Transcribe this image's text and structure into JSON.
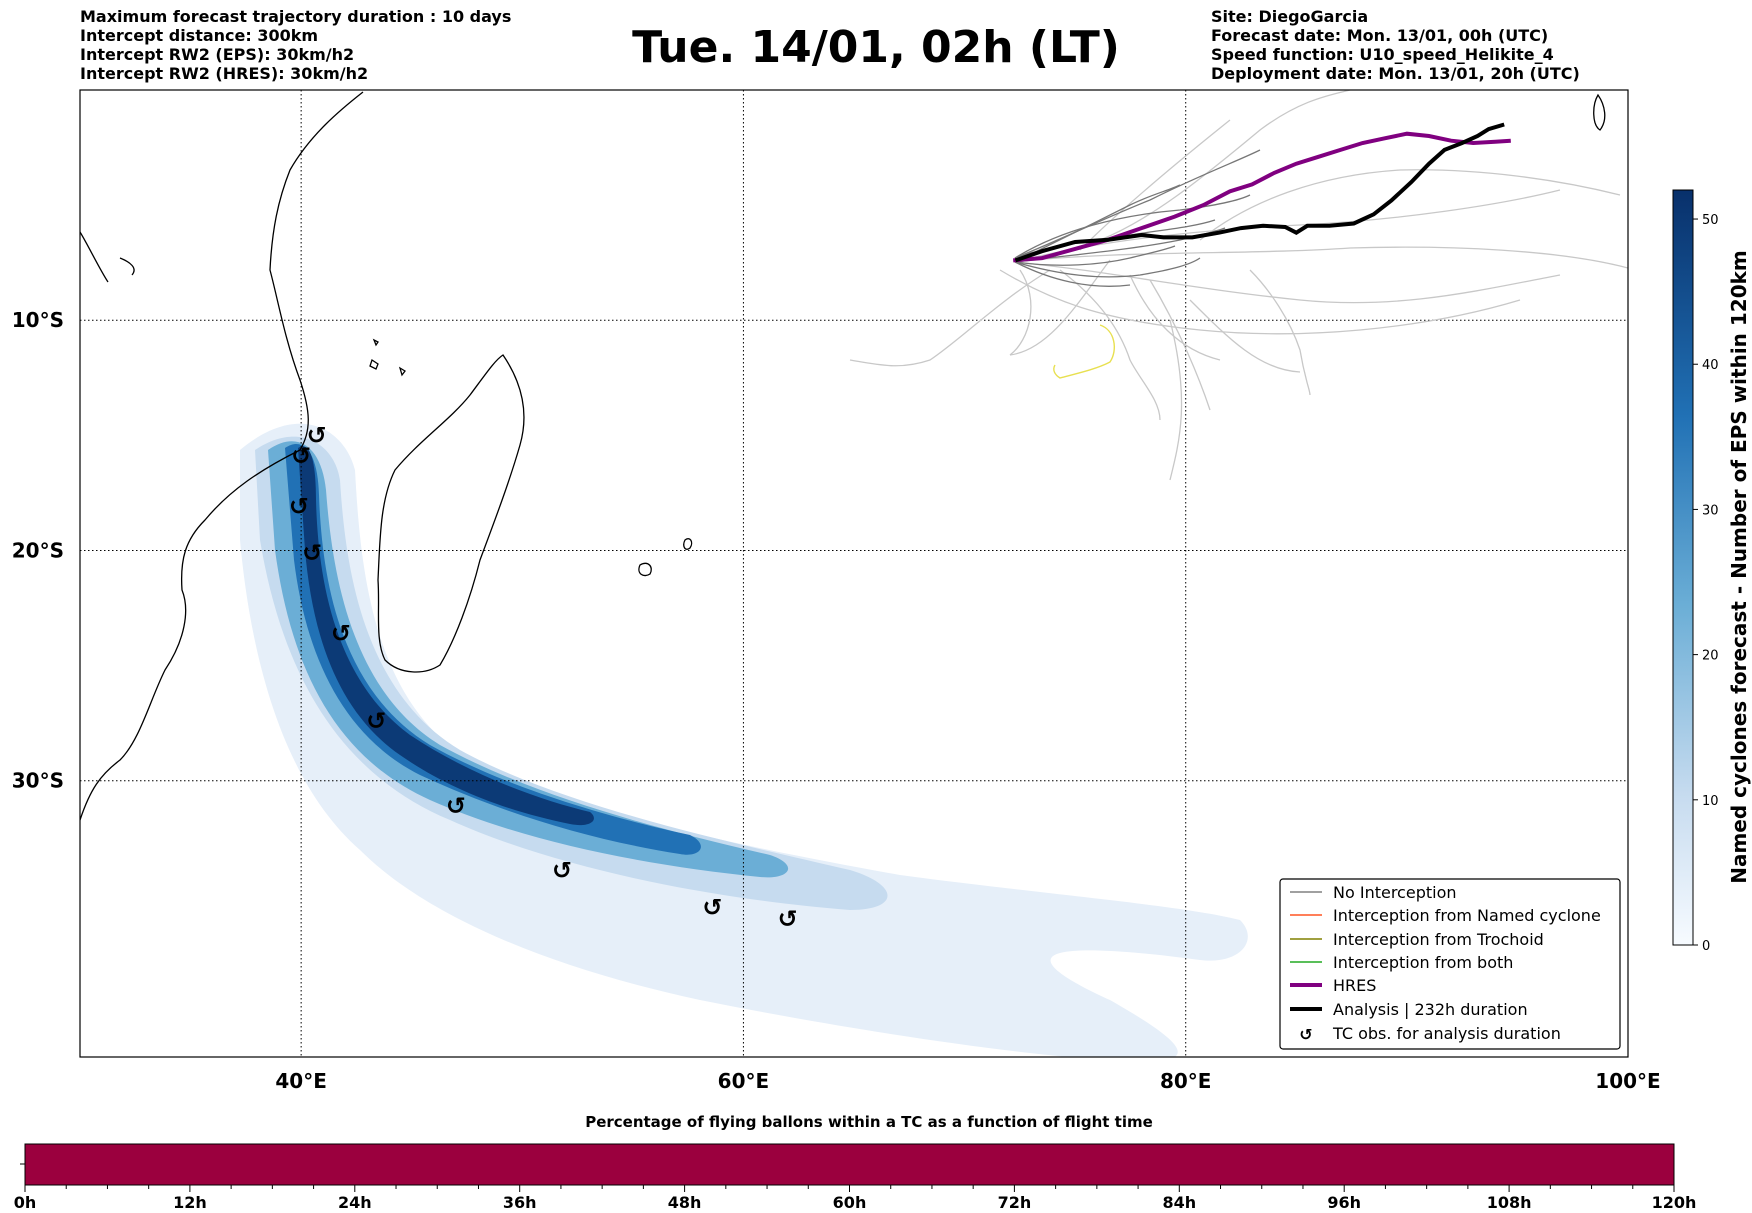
{
  "header": {
    "left_lines": [
      "Maximum forecast trajectory duration : 10 days",
      "Intercept distance: 300km",
      "Intercept RW2 (EPS):  30km/h2",
      "Intercept RW2 (HRES): 30km/h2"
    ],
    "title": "Tue. 14/01, 02h (LT)",
    "right_lines": [
      "Site: DiegoGarcia",
      "Forecast date: Mon. 13/01, 00h (UTC)",
      "Speed function: U10_speed_Helikite_4",
      "Deployment date: Mon. 13/01, 20h (UTC)"
    ]
  },
  "chart_data": [
    {
      "type": "map",
      "title": "Tue. 14/01, 02h (LT)",
      "xlim": [
        30,
        100
      ],
      "ylim": [
        -42,
        0
      ],
      "x_ticks": [
        40,
        60,
        80,
        100
      ],
      "x_tick_labels": [
        "40°E",
        "60°E",
        "80°E",
        "100°E"
      ],
      "y_ticks": [
        -10,
        -20,
        -30
      ],
      "y_tick_labels": [
        "10°S",
        "20°S",
        "30°S"
      ],
      "grid": true,
      "tc_obs": [
        {
          "lon": 40.7,
          "lat": -15.0
        },
        {
          "lon": 40.0,
          "lat": -15.9
        },
        {
          "lon": 39.9,
          "lat": -18.1
        },
        {
          "lon": 40.5,
          "lat": -20.1
        },
        {
          "lon": 41.8,
          "lat": -23.6
        },
        {
          "lon": 43.4,
          "lat": -27.4
        },
        {
          "lon": 47.0,
          "lat": -31.1
        },
        {
          "lon": 51.8,
          "lat": -33.9
        },
        {
          "lon": 58.6,
          "lat": -35.5
        },
        {
          "lon": 62.0,
          "lat": -36.0
        }
      ],
      "analysis_track": [
        [
          72.3,
          -7.4
        ],
        [
          73.5,
          -7.0
        ],
        [
          75.0,
          -6.6
        ],
        [
          76.5,
          -6.5
        ],
        [
          78.0,
          -6.3
        ],
        [
          79.0,
          -6.4
        ],
        [
          80.3,
          -6.4
        ],
        [
          81.5,
          -6.2
        ],
        [
          82.5,
          -6.0
        ],
        [
          83.5,
          -5.9
        ],
        [
          84.5,
          -5.95
        ],
        [
          85.0,
          -6.2
        ],
        [
          85.5,
          -5.9
        ],
        [
          86.5,
          -5.9
        ],
        [
          87.6,
          -5.8
        ],
        [
          88.5,
          -5.4
        ],
        [
          89.3,
          -4.8
        ],
        [
          90.2,
          -4.0
        ],
        [
          91.0,
          -3.2
        ],
        [
          91.7,
          -2.6
        ],
        [
          92.5,
          -2.3
        ],
        [
          93.2,
          -2.0
        ],
        [
          93.7,
          -1.7
        ],
        [
          94.4,
          -1.5
        ]
      ],
      "hres_track": [
        [
          72.2,
          -7.4
        ],
        [
          73.5,
          -7.3
        ],
        [
          75.0,
          -6.9
        ],
        [
          76.5,
          -6.5
        ],
        [
          78.0,
          -6.0
        ],
        [
          79.5,
          -5.5
        ],
        [
          80.8,
          -5.0
        ],
        [
          82.0,
          -4.4
        ],
        [
          83.0,
          -4.1
        ],
        [
          84.0,
          -3.6
        ],
        [
          85.0,
          -3.2
        ],
        [
          86.0,
          -2.9
        ],
        [
          87.0,
          -2.6
        ],
        [
          88.0,
          -2.3
        ],
        [
          89.0,
          -2.1
        ],
        [
          90.0,
          -1.9
        ],
        [
          91.0,
          -2.0
        ],
        [
          92.0,
          -2.2
        ],
        [
          93.0,
          -2.3
        ],
        [
          94.0,
          -2.25
        ],
        [
          94.7,
          -2.2
        ]
      ],
      "legend": {
        "position": "lower-right",
        "entries": [
          {
            "label": "No Interception",
            "color": "#808080"
          },
          {
            "label": "Interception from Named cyclone",
            "color": "#ff5522"
          },
          {
            "label": "Interception from Trochoid",
            "color": "#808000"
          },
          {
            "label": "Interception from both",
            "color": "#22aa22"
          },
          {
            "label": "HRES",
            "color": "#800080"
          },
          {
            "label": "Analysis | 232h duration",
            "color": "#000000"
          },
          {
            "label": "TC obs. for analysis duration",
            "color": "#000000"
          }
        ]
      }
    },
    {
      "type": "colorbar",
      "orientation": "vertical",
      "label": "Named cyclones forecast - Number of EPS within 120km",
      "range": [
        0,
        52
      ],
      "ticks": [
        0,
        10,
        20,
        30,
        40,
        50
      ],
      "colors": [
        "#f7fbff",
        "#08306b"
      ]
    },
    {
      "type": "colorbar",
      "orientation": "horizontal",
      "title": "Percentage of flying ballons within a TC as a function of flight time",
      "range_hours": [
        0,
        120
      ],
      "ticks": [
        "0h",
        "12h",
        "24h",
        "36h",
        "48h",
        "60h",
        "72h",
        "84h",
        "96h",
        "108h",
        "120h"
      ],
      "fill_color": "#9b003e"
    }
  ]
}
